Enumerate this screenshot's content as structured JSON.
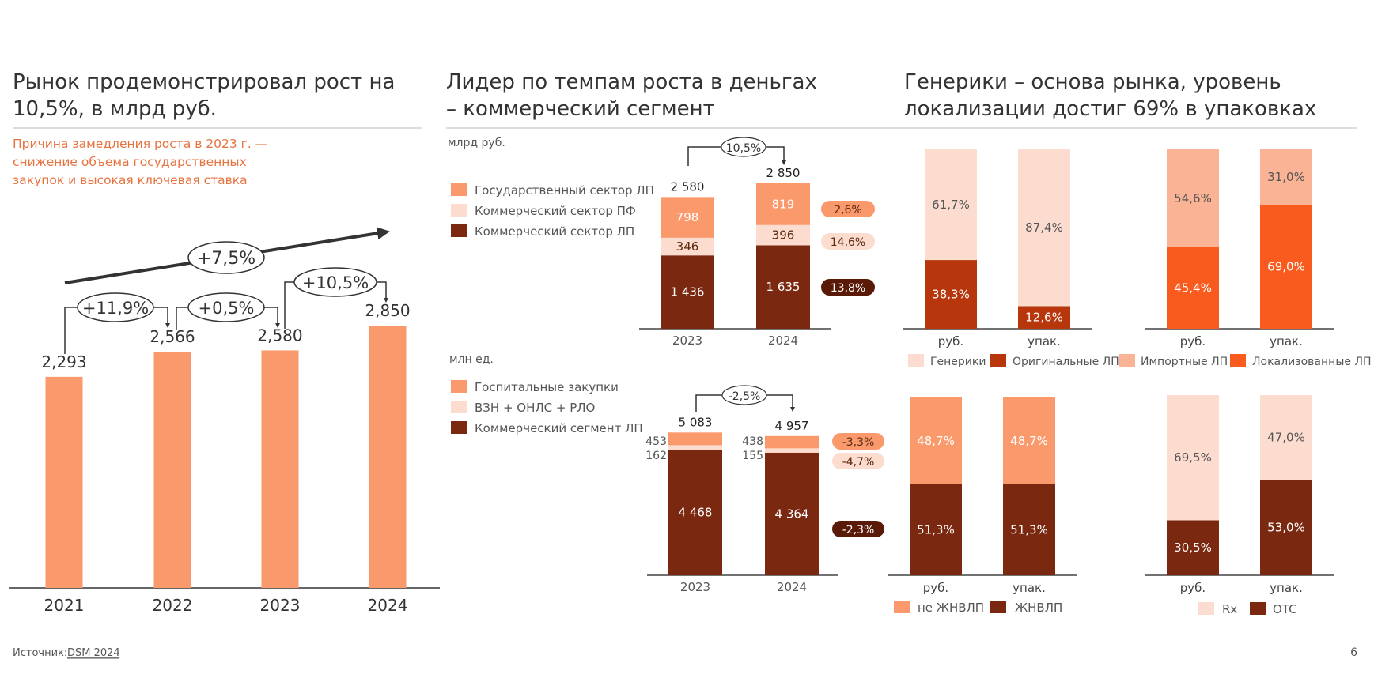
{
  "page_number": "6",
  "source": {
    "label": "Источник:",
    "link": "DSM 2024"
  },
  "colors": {
    "light_orange": "#FA9A6C",
    "pale": "#FCDCCF",
    "dark_brown": "#7B2810",
    "rust": "#B7360B",
    "bright_orange": "#F95A1E",
    "orange_text": "#E8733F",
    "darkest": "#5A1A08"
  },
  "panel1": {
    "title_line1": "Рынок продемонстрировал рост на",
    "title_line2": "10,5%, в млрд руб.",
    "note_line1": "Причина замедления роста в 2023 г. —",
    "note_line2": "снижение объема государственных",
    "note_line3": "закупок и высокая ключевая ставка",
    "overall_growth": "+7,5%",
    "growths": [
      "+11,9%",
      "+0,5%",
      "+10,5%"
    ]
  },
  "panel2": {
    "title_line1": "Лидер по темпам роста в деньгах",
    "title_line2": "– коммерческий сегмент",
    "top": {
      "unit": "млрд руб.",
      "growth_total": "10,5%",
      "legend": [
        "Государственный сектор ЛП",
        "Коммерческий сектор ПФ",
        "Коммерческий сектор ЛП"
      ],
      "growth_badges": [
        "2,6%",
        "14,6%",
        "13,8%"
      ]
    },
    "bottom": {
      "unit": "млн ед.",
      "growth_total": "-2,5%",
      "legend": [
        "Госпитальные закупки",
        "ВЗН + ОНЛС + РЛО",
        "Коммерческий сегмент ЛП"
      ],
      "growth_badges": [
        "-3,3%",
        "-4,7%",
        "-2,3%"
      ]
    }
  },
  "panel3": {
    "title_line1": "Генерики – основа рынка, уровень",
    "title_line2": "локализации достиг 69% в упаковках",
    "legend_a": [
      "Генерики",
      "Оригинальные ЛП"
    ],
    "legend_b": [
      "Импортные ЛП",
      "Локализованные ЛП"
    ],
    "legend_c": [
      "не ЖНВЛП",
      "ЖНВЛП"
    ],
    "legend_d": [
      "Rx",
      "OTC"
    ]
  },
  "chart_data": [
    {
      "type": "bar",
      "categories": [
        "2021",
        "2022",
        "2023",
        "2024"
      ],
      "values": [
        2293,
        2566,
        2580,
        2850
      ],
      "value_labels": [
        "2,293",
        "2,566",
        "2,580",
        "2,850"
      ],
      "ylim": [
        0,
        3000
      ]
    },
    {
      "type": "bar",
      "stacked": true,
      "categories": [
        "2023",
        "2024"
      ],
      "totals": [
        "2 580",
        "2 850"
      ],
      "series": [
        {
          "name": "Коммерческий сектор ЛП",
          "values": [
            1436,
            1635
          ],
          "labels": [
            "1 436",
            "1 635"
          ]
        },
        {
          "name": "Коммерческий сектор ПФ",
          "values": [
            346,
            396
          ],
          "labels": [
            "346",
            "396"
          ]
        },
        {
          "name": "Государственный сектор ЛП",
          "values": [
            798,
            819
          ],
          "labels": [
            "798",
            "819"
          ]
        }
      ]
    },
    {
      "type": "bar",
      "stacked": true,
      "categories": [
        "2023",
        "2024"
      ],
      "totals": [
        "5 083",
        "4 957"
      ],
      "series": [
        {
          "name": "Коммерческий сегмент ЛП",
          "values": [
            4468,
            4364
          ],
          "labels": [
            "4 468",
            "4 364"
          ]
        },
        {
          "name": "ВЗН + ОНЛС + РЛО",
          "values": [
            162,
            155
          ],
          "labels": [
            "162",
            "155"
          ]
        },
        {
          "name": "Госпитальные закупки",
          "values": [
            453,
            438
          ],
          "labels": [
            "453",
            "438"
          ]
        }
      ]
    },
    {
      "type": "bar",
      "stacked": true,
      "percent": true,
      "categories": [
        "руб.",
        "упак."
      ],
      "series": [
        {
          "name": "Оригинальные ЛП",
          "values": [
            38.3,
            12.6
          ],
          "labels": [
            "38,3%",
            "12,6%"
          ]
        },
        {
          "name": "Генерики",
          "values": [
            61.7,
            87.4
          ],
          "labels": [
            "61,7%",
            "87,4%"
          ]
        }
      ]
    },
    {
      "type": "bar",
      "stacked": true,
      "percent": true,
      "categories": [
        "руб.",
        "упак."
      ],
      "series": [
        {
          "name": "Локализованные ЛП",
          "values": [
            45.4,
            69.0
          ],
          "labels": [
            "45,4%",
            "69,0%"
          ]
        },
        {
          "name": "Импортные ЛП",
          "values": [
            54.6,
            31.0
          ],
          "labels": [
            "54,6%",
            "31,0%"
          ]
        }
      ]
    },
    {
      "type": "bar",
      "stacked": true,
      "percent": true,
      "categories": [
        "руб.",
        "упак."
      ],
      "series": [
        {
          "name": "ЖНВЛП",
          "values": [
            51.3,
            51.3
          ],
          "labels": [
            "51,3%",
            "51,3%"
          ]
        },
        {
          "name": "не ЖНВЛП",
          "values": [
            48.7,
            48.7
          ],
          "labels": [
            "48,7%",
            "48,7%"
          ]
        }
      ]
    },
    {
      "type": "bar",
      "stacked": true,
      "percent": true,
      "categories": [
        "руб.",
        "упак."
      ],
      "series": [
        {
          "name": "OTC",
          "values": [
            30.5,
            53.0
          ],
          "labels": [
            "30,5%",
            "53,0%"
          ]
        },
        {
          "name": "Rx",
          "values": [
            69.5,
            47.0
          ],
          "labels": [
            "69,5%",
            "47,0%"
          ]
        }
      ]
    }
  ]
}
